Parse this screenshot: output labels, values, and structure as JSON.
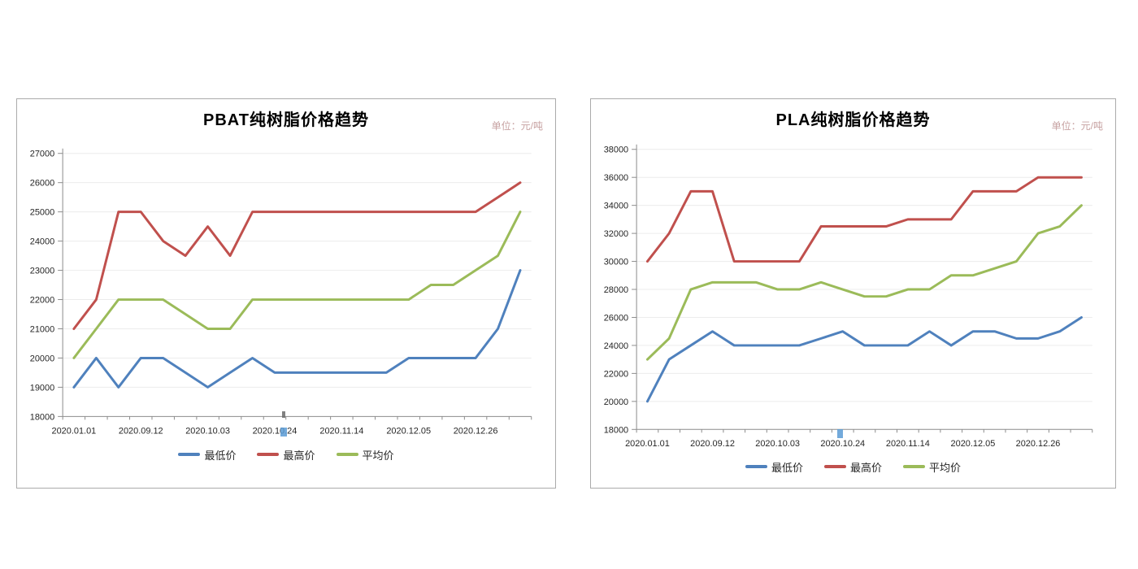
{
  "style": {
    "panel_border_color": "#ababab",
    "grid_color": "#ececec",
    "axis_color": "#8c8c8c",
    "tick_label_color": "#262626",
    "title_color": "#000000",
    "unit_color": "#c7a2a2",
    "artifact_color": "#5b9bd5",
    "tick_artifact_color": "#6b6b6b"
  },
  "chart_data": [
    {
      "type": "line",
      "title": "PBAT纯树脂价格趋势",
      "unit_label": "单位：元/吨",
      "x_labels": [
        "2020.01.01",
        "2020.09.12",
        "2020.10.03",
        "2020.10.24",
        "2020.11.14",
        "2020.12.05",
        "2020.12.26"
      ],
      "x_label_indices": [
        0,
        3,
        6,
        9,
        12,
        15,
        18
      ],
      "n_points": 21,
      "ylim": [
        18000,
        27000
      ],
      "y_step": 1000,
      "grid": true,
      "legend_position": "bottom",
      "series": [
        {
          "name": "最低价",
          "color": "#4F81BD",
          "values": [
            19000,
            20000,
            19000,
            20000,
            20000,
            19500,
            19000,
            19500,
            20000,
            19500,
            19500,
            19500,
            19500,
            19500,
            19500,
            20000,
            20000,
            20000,
            20000,
            21000,
            23000
          ]
        },
        {
          "name": "最高价",
          "color": "#C0504D",
          "values": [
            21000,
            22000,
            25000,
            25000,
            24000,
            23500,
            24500,
            23500,
            25000,
            25000,
            25000,
            25000,
            25000,
            25000,
            25000,
            25000,
            25000,
            25000,
            25000,
            25500,
            26000
          ]
        },
        {
          "name": "平均价",
          "color": "#9BBB59",
          "values": [
            20000,
            21000,
            22000,
            22000,
            22000,
            21500,
            21000,
            21000,
            22000,
            22000,
            22000,
            22000,
            22000,
            22000,
            22000,
            22000,
            22500,
            22500,
            23000,
            23500,
            25000
          ]
        }
      ]
    },
    {
      "type": "line",
      "title": "PLA纯树脂价格趋势",
      "unit_label": "单位：元/吨",
      "x_labels": [
        "2020.01.01",
        "2020.09.12",
        "2020.10.03",
        "2020.10.24",
        "2020.11.14",
        "2020.12.05",
        "2020.12.26"
      ],
      "x_label_indices": [
        0,
        3,
        6,
        9,
        12,
        15,
        18
      ],
      "n_points": 21,
      "ylim": [
        18000,
        38000
      ],
      "y_step": 2000,
      "grid": true,
      "legend_position": "bottom",
      "series": [
        {
          "name": "最低价",
          "color": "#4F81BD",
          "values": [
            20000,
            23000,
            24000,
            25000,
            24000,
            24000,
            24000,
            24000,
            24500,
            25000,
            24000,
            24000,
            24000,
            25000,
            24000,
            25000,
            25000,
            24500,
            24500,
            25000,
            26000
          ]
        },
        {
          "name": "最高价",
          "color": "#C0504D",
          "values": [
            30000,
            32000,
            35000,
            35000,
            30000,
            30000,
            30000,
            30000,
            32500,
            32500,
            32500,
            32500,
            33000,
            33000,
            33000,
            35000,
            35000,
            35000,
            36000,
            36000,
            36000
          ]
        },
        {
          "name": "平均价",
          "color": "#9BBB59",
          "values": [
            23000,
            24500,
            28000,
            28500,
            28500,
            28500,
            28000,
            28000,
            28500,
            28000,
            27500,
            27500,
            28000,
            28000,
            29000,
            29000,
            29500,
            30000,
            32000,
            32500,
            34000
          ]
        }
      ]
    }
  ]
}
